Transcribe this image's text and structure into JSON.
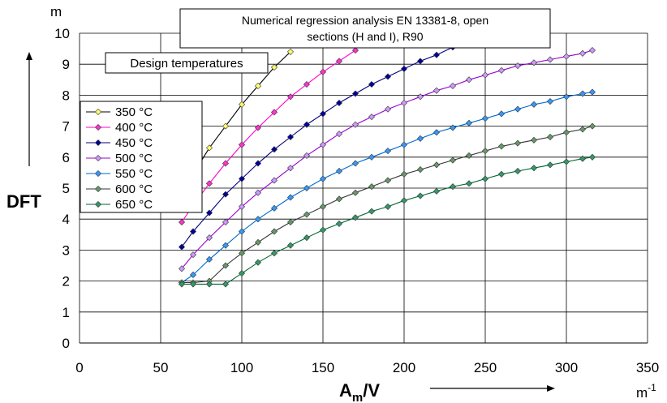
{
  "chart_data": {
    "type": "line",
    "title": "Numerical regression analysis EN 13381-8, open sections (H and I), R90",
    "title_lines": [
      "Numerical regression analysis EN 13381-8, open",
      "sections (H and I), R90"
    ],
    "ylabel": "DFT",
    "y_unit": "m",
    "xlabel_main": "A",
    "xlabel_sub": "m",
    "xlabel_rest": "/V",
    "x_unit_main": "m",
    "x_unit_sup": "-1",
    "xlim": [
      0,
      350
    ],
    "ylim": [
      0,
      10
    ],
    "x_ticks": [
      "0",
      "50",
      "100",
      "150",
      "200",
      "250",
      "300",
      "350"
    ],
    "y_ticks": [
      "0",
      "1",
      "2",
      "3",
      "4",
      "5",
      "6",
      "7",
      "8",
      "9",
      "10"
    ],
    "grid": true,
    "legend": {
      "title": "Design temperatures",
      "position": "top-left"
    },
    "series": [
      {
        "name": "350 °C",
        "color": "#FFFF66",
        "line": "#000000",
        "x": [
          63,
          70,
          80,
          90,
          100,
          110,
          120,
          130
        ],
        "y": [
          4.9,
          5.45,
          6.3,
          7.0,
          7.7,
          8.3,
          8.9,
          9.4
        ]
      },
      {
        "name": "400 °C",
        "color": "#FF33CC",
        "line": "#FF00CC",
        "x": [
          63,
          70,
          80,
          90,
          100,
          110,
          120,
          130,
          140,
          150,
          160,
          170
        ],
        "y": [
          3.9,
          4.45,
          5.15,
          5.8,
          6.4,
          6.95,
          7.45,
          7.95,
          8.35,
          8.75,
          9.1,
          9.45
        ]
      },
      {
        "name": "450 °C",
        "color": "#000099",
        "line": "#000080",
        "x": [
          63,
          70,
          80,
          90,
          100,
          110,
          120,
          130,
          140,
          150,
          160,
          170,
          180,
          190,
          200,
          210,
          220,
          230
        ],
        "y": [
          3.1,
          3.6,
          4.2,
          4.8,
          5.3,
          5.8,
          6.25,
          6.65,
          7.05,
          7.4,
          7.75,
          8.05,
          8.35,
          8.6,
          8.85,
          9.1,
          9.3,
          9.55
        ]
      },
      {
        "name": "500 °C",
        "color": "#CC99FF",
        "line": "#9900CC",
        "x": [
          63,
          70,
          80,
          90,
          100,
          110,
          120,
          130,
          140,
          150,
          160,
          170,
          180,
          190,
          200,
          210,
          220,
          230,
          240,
          250,
          260,
          270,
          280,
          290,
          300,
          310,
          316
        ],
        "y": [
          2.4,
          2.85,
          3.4,
          3.9,
          4.4,
          4.85,
          5.25,
          5.65,
          6.05,
          6.4,
          6.75,
          7.05,
          7.3,
          7.55,
          7.75,
          7.95,
          8.15,
          8.3,
          8.5,
          8.65,
          8.8,
          8.95,
          9.05,
          9.15,
          9.25,
          9.35,
          9.45
        ]
      },
      {
        "name": "550 °C",
        "color": "#3399FF",
        "line": "#0066CC",
        "x": [
          63,
          70,
          80,
          90,
          100,
          110,
          120,
          130,
          140,
          150,
          160,
          170,
          180,
          190,
          200,
          210,
          220,
          230,
          240,
          250,
          260,
          270,
          280,
          290,
          300,
          310,
          316
        ],
        "y": [
          1.95,
          2.2,
          2.7,
          3.15,
          3.6,
          4.0,
          4.35,
          4.7,
          5.0,
          5.3,
          5.55,
          5.8,
          6.0,
          6.2,
          6.4,
          6.6,
          6.8,
          6.95,
          7.1,
          7.25,
          7.4,
          7.55,
          7.7,
          7.8,
          7.95,
          8.05,
          8.1
        ]
      },
      {
        "name": "600 °C",
        "color": "#669966",
        "line": "#333333",
        "x": [
          63,
          70,
          80,
          90,
          100,
          110,
          120,
          130,
          140,
          150,
          160,
          170,
          180,
          190,
          200,
          210,
          220,
          230,
          240,
          250,
          260,
          270,
          280,
          290,
          300,
          310,
          316
        ],
        "y": [
          1.95,
          1.95,
          2.0,
          2.5,
          2.9,
          3.25,
          3.6,
          3.9,
          4.15,
          4.4,
          4.65,
          4.85,
          5.05,
          5.25,
          5.45,
          5.6,
          5.75,
          5.9,
          6.05,
          6.2,
          6.35,
          6.45,
          6.55,
          6.65,
          6.8,
          6.9,
          7.0
        ]
      },
      {
        "name": "650 °C",
        "color": "#339966",
        "line": "#006633",
        "x": [
          63,
          70,
          80,
          90,
          100,
          110,
          120,
          130,
          140,
          150,
          160,
          170,
          180,
          190,
          200,
          210,
          220,
          230,
          240,
          250,
          260,
          270,
          280,
          290,
          300,
          310,
          316
        ],
        "y": [
          1.9,
          1.9,
          1.9,
          1.9,
          2.25,
          2.6,
          2.9,
          3.15,
          3.4,
          3.65,
          3.85,
          4.05,
          4.25,
          4.4,
          4.6,
          4.75,
          4.9,
          5.05,
          5.15,
          5.3,
          5.45,
          5.55,
          5.65,
          5.75,
          5.85,
          5.95,
          6.0
        ]
      }
    ]
  }
}
